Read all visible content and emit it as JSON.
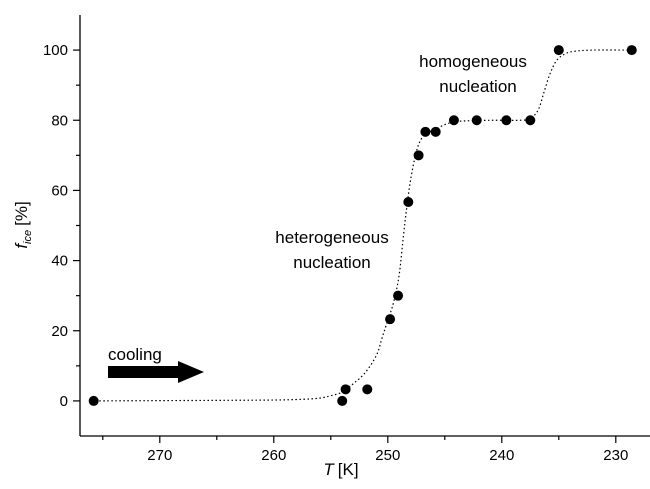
{
  "chart_data": {
    "type": "scatter",
    "xlabel": {
      "symbol": "T",
      "unit": "[K]"
    },
    "ylabel": {
      "symbol": "f",
      "subscript": "ice",
      "unit": "[%]"
    },
    "xlim": [
      277,
      227
    ],
    "ylim": [
      -10,
      110
    ],
    "x_axis_reversed": true,
    "xticks": [
      270,
      260,
      250,
      240,
      230
    ],
    "yticks": [
      0,
      20,
      40,
      60,
      80,
      100
    ],
    "x_tick_labels": [
      "270",
      "260",
      "250",
      "240",
      "230"
    ],
    "y_tick_labels": [
      "0",
      "20",
      "40",
      "60",
      "80",
      "100"
    ],
    "series": [
      {
        "marker_color": "#000000",
        "points": [
          {
            "x": 275.8,
            "y": 0
          },
          {
            "x": 254.0,
            "y": 0
          },
          {
            "x": 253.7,
            "y": 3.3
          },
          {
            "x": 251.8,
            "y": 3.3
          },
          {
            "x": 249.8,
            "y": 23.3
          },
          {
            "x": 249.1,
            "y": 30
          },
          {
            "x": 248.2,
            "y": 56.7
          },
          {
            "x": 247.3,
            "y": 70
          },
          {
            "x": 246.7,
            "y": 76.7
          },
          {
            "x": 245.8,
            "y": 76.7
          },
          {
            "x": 244.2,
            "y": 80
          },
          {
            "x": 242.2,
            "y": 80
          },
          {
            "x": 239.6,
            "y": 80
          },
          {
            "x": 237.5,
            "y": 80
          },
          {
            "x": 235.0,
            "y": 100
          },
          {
            "x": 228.6,
            "y": 100
          }
        ]
      }
    ],
    "fit_curve": {
      "style": "dotted",
      "color": "#000000",
      "points": [
        [
          276,
          0
        ],
        [
          262,
          0.2
        ],
        [
          258,
          0.4
        ],
        [
          256,
          0.8
        ],
        [
          255,
          1.5
        ],
        [
          254,
          2.5
        ],
        [
          253,
          5
        ],
        [
          252,
          8
        ],
        [
          251,
          13
        ],
        [
          250.5,
          18
        ],
        [
          250,
          23
        ],
        [
          249.5,
          28
        ],
        [
          249,
          36
        ],
        [
          248.6,
          48
        ],
        [
          248.3,
          56
        ],
        [
          248,
          63
        ],
        [
          247.5,
          71
        ],
        [
          247,
          75
        ],
        [
          246.4,
          76.5
        ],
        [
          245.8,
          77.5
        ],
        [
          244.8,
          79
        ],
        [
          243.8,
          79.7
        ],
        [
          241,
          80
        ],
        [
          238.5,
          80
        ],
        [
          237.5,
          80.5
        ],
        [
          236.8,
          83
        ],
        [
          236.3,
          88
        ],
        [
          235.8,
          93
        ],
        [
          235.2,
          97
        ],
        [
          234.4,
          99
        ],
        [
          233.5,
          99.7
        ],
        [
          232,
          100
        ],
        [
          228.6,
          100
        ]
      ]
    },
    "annotations": [
      {
        "lines": [
          "homogeneous",
          "nucleation"
        ]
      },
      {
        "lines": [
          "heterogeneous",
          "nucleation"
        ]
      },
      {
        "lines": [
          "cooling"
        ],
        "arrow": "right"
      }
    ]
  }
}
